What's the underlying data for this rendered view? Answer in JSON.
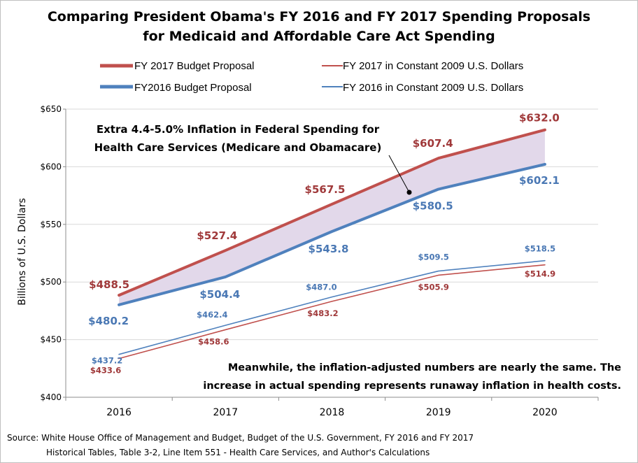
{
  "chart_data": {
    "type": "line",
    "title_lines": [
      "Comparing President Obama's FY 2016 and FY 2017 Spending Proposals",
      "for Medicaid and Affordable Care Act Spending"
    ],
    "xlabel": "",
    "ylabel": "Billions of U.S. Dollars",
    "categories": [
      "2016",
      "2017",
      "2018",
      "2019",
      "2020"
    ],
    "ylim": [
      400,
      650
    ],
    "yticks": [
      400,
      450,
      500,
      550,
      600,
      650
    ],
    "ytick_labels": [
      "$400",
      "$450",
      "$500",
      "$550",
      "$600",
      "$650"
    ],
    "grid": "horizontal",
    "colors": {
      "fy2017": "#c0504d",
      "fy2016": "#4f81bd",
      "fy2017_label": "#a0393a",
      "fy2016_label": "#4a78b4",
      "band_fill": "#e2d8ea"
    },
    "series": [
      {
        "key": "fy2017",
        "name": "FY 2017 Budget Proposal",
        "style": "thick",
        "values": [
          488.5,
          527.4,
          567.5,
          607.4,
          632.0
        ],
        "labels": [
          "$488.5",
          "$527.4",
          "$567.5",
          "$607.4",
          "$632.0"
        ]
      },
      {
        "key": "fy2016",
        "name": "FY2016 Budget Proposal",
        "style": "thick",
        "values": [
          480.2,
          504.4,
          543.8,
          580.5,
          602.1
        ],
        "labels": [
          "$480.2",
          "$504.4",
          "$543.8",
          "$580.5",
          "$602.1"
        ]
      },
      {
        "key": "fy2017_real",
        "name": "FY 2017 in Constant 2009 U.S. Dollars",
        "style": "thin",
        "values": [
          433.6,
          458.6,
          483.2,
          505.9,
          514.9
        ],
        "labels": [
          "$433.6",
          "$458.6",
          "$483.2",
          "$505.9",
          "$514.9"
        ]
      },
      {
        "key": "fy2016_real",
        "name": "FY 2016 in Constant 2009 U.S. Dollars",
        "style": "thin",
        "values": [
          437.2,
          462.4,
          487.0,
          509.5,
          518.5
        ],
        "labels": [
          "$437.2",
          "$462.4",
          "$487.0",
          "$509.5",
          "$518.5"
        ]
      }
    ],
    "annotations": {
      "band_note_lines": [
        "Extra 4.4-5.0% Inflation in Federal Spending for",
        "Health Care Services (Medicare and Obamacare)"
      ],
      "bottom_note_lines": [
        "Meanwhile, the inflation-adjusted  numbers are nearly the same.  The",
        "increase in actual spending represents runaway inflation in health costs."
      ]
    },
    "source_lines": [
      "Source: White House Office of Management and Budget, Budget of the U.S. Government,  FY 2016 and FY 2017",
      "Historical Tables, Table 3-2, Line Item 551 - Health Care Services, and Author's Calculations"
    ]
  }
}
